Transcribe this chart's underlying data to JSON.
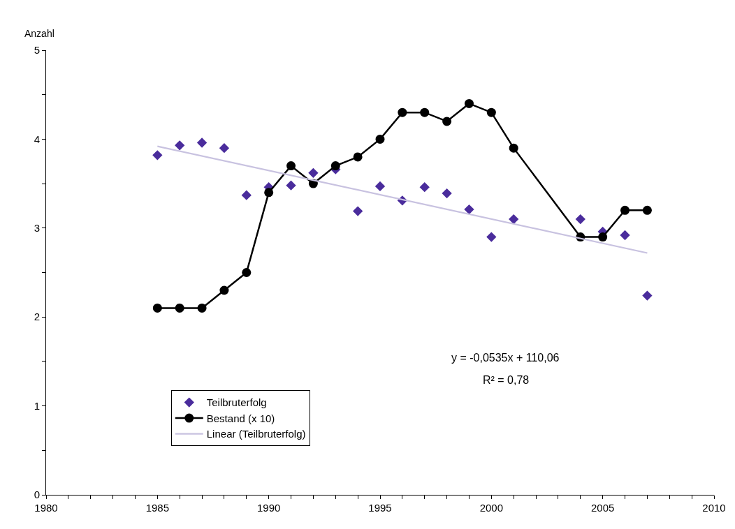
{
  "chart_data": {
    "type": "line",
    "ylabel": "Anzahl",
    "x": [
      1985,
      1986,
      1987,
      1988,
      1989,
      1990,
      1991,
      1992,
      1993,
      1994,
      1995,
      1996,
      1997,
      1998,
      1999,
      2000,
      2001,
      2004,
      2005,
      2006,
      2007
    ],
    "series": [
      {
        "name": "Teilbruterfolg",
        "type": "scatter",
        "marker": "diamond",
        "color": "#4a2c9c",
        "values": [
          3.82,
          3.93,
          3.96,
          3.9,
          3.37,
          3.46,
          3.48,
          3.62,
          3.66,
          3.19,
          3.47,
          3.31,
          3.46,
          3.39,
          3.21,
          2.9,
          3.1,
          3.1,
          2.96,
          2.92,
          2.24
        ]
      },
      {
        "name": "Bestand (x 10)",
        "marker": "circle",
        "line_style": "solid",
        "color": "#000000",
        "values": [
          2.1,
          2.1,
          2.1,
          2.3,
          2.5,
          3.4,
          3.7,
          3.5,
          3.7,
          3.8,
          4.0,
          4.3,
          4.3,
          4.2,
          4.4,
          4.3,
          3.9,
          2.9,
          2.9,
          3.2,
          3.2
        ]
      },
      {
        "name": "Linear (Teilbruterfolg)",
        "marker": "none",
        "line_style": "solid",
        "color": "#c8c2e0",
        "x": [
          1985,
          2007
        ],
        "values": [
          3.92,
          2.72
        ]
      }
    ],
    "xlim": [
      1980,
      2010
    ],
    "xticks": [
      1980,
      {
        "value": 1981,
        "label": null
      },
      {
        "value": 1982,
        "label": null
      },
      {
        "value": 1983,
        "label": null
      },
      {
        "value": 1984,
        "label": null
      },
      1985,
      {
        "value": 1986,
        "label": null
      },
      {
        "value": 1987,
        "label": null
      },
      {
        "value": 1988,
        "label": null
      },
      {
        "value": 1989,
        "label": null
      },
      1990,
      {
        "value": 1991,
        "label": null
      },
      {
        "value": 1992,
        "label": null
      },
      {
        "value": 1993,
        "label": null
      },
      {
        "value": 1994,
        "label": null
      },
      1995,
      {
        "value": 1996,
        "label": null
      },
      {
        "value": 1997,
        "label": null
      },
      {
        "value": 1998,
        "label": null
      },
      {
        "value": 1999,
        "label": null
      },
      2000,
      {
        "value": 2001,
        "label": null
      },
      {
        "value": 2002,
        "label": null
      },
      {
        "value": 2003,
        "label": null
      },
      {
        "value": 2004,
        "label": null
      },
      2005,
      {
        "value": 2006,
        "label": null
      },
      {
        "value": 2007,
        "label": null
      },
      {
        "value": 2008,
        "label": null
      },
      {
        "value": 2009,
        "label": null
      },
      2010
    ],
    "ylim": [
      0,
      5
    ],
    "yticks": [
      0,
      {
        "value": 0.5,
        "label": null
      },
      1,
      {
        "value": 1.5,
        "label": null
      },
      2,
      {
        "value": 2.5,
        "label": null
      },
      3,
      {
        "value": 3.5,
        "label": null
      },
      4,
      {
        "value": 4.5,
        "label": null
      },
      5
    ],
    "legend": "bottom left",
    "annotations": [
      "y = -0,0535x + 110,06",
      "R² = 0,78"
    ]
  }
}
